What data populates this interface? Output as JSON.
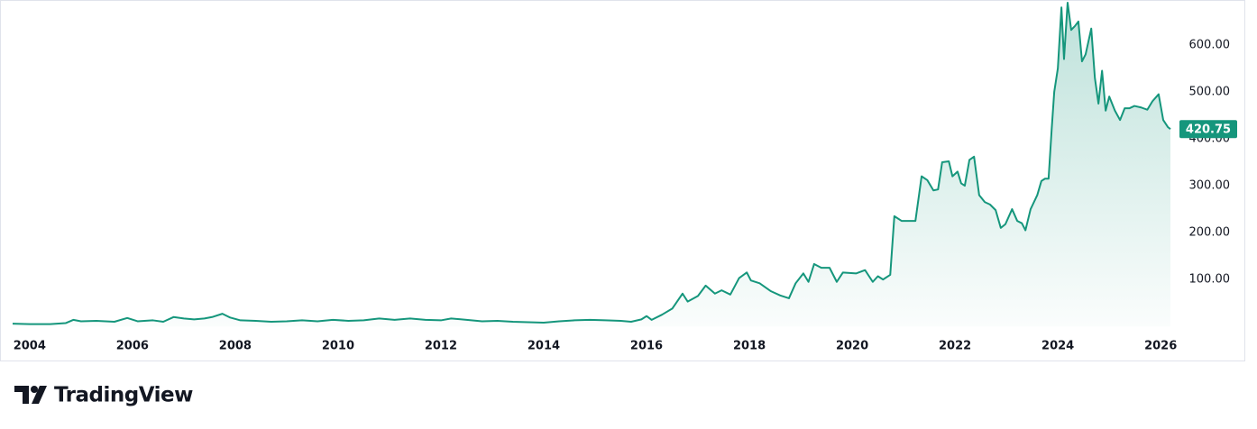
{
  "chart_data": {
    "type": "area",
    "color": "#15967c",
    "grid": false,
    "x": [
      2003.67,
      2004.0,
      2004.4,
      2004.7,
      2004.85,
      2005.0,
      2005.3,
      2005.65,
      2005.9,
      2006.1,
      2006.4,
      2006.6,
      2006.8,
      2007.0,
      2007.2,
      2007.4,
      2007.55,
      2007.75,
      2007.9,
      2008.1,
      2008.4,
      2008.7,
      2009.0,
      2009.3,
      2009.6,
      2009.9,
      2010.2,
      2010.5,
      2010.8,
      2011.1,
      2011.4,
      2011.7,
      2012.0,
      2012.2,
      2012.5,
      2012.8,
      2013.1,
      2013.4,
      2013.7,
      2014.0,
      2014.3,
      2014.6,
      2014.9,
      2015.2,
      2015.5,
      2015.7,
      2015.9,
      2016.0,
      2016.1,
      2016.3,
      2016.5,
      2016.7,
      2016.8,
      2017.0,
      2017.15,
      2017.33,
      2017.46,
      2017.63,
      2017.8,
      2017.95,
      2018.03,
      2018.2,
      2018.42,
      2018.6,
      2018.77,
      2018.9,
      2019.05,
      2019.15,
      2019.26,
      2019.4,
      2019.56,
      2019.7,
      2019.82,
      2020.08,
      2020.25,
      2020.4,
      2020.5,
      2020.6,
      2020.74,
      2020.82,
      2020.96,
      2021.23,
      2021.35,
      2021.46,
      2021.58,
      2021.67,
      2021.75,
      2021.88,
      2021.95,
      2022.05,
      2022.12,
      2022.19,
      2022.28,
      2022.37,
      2022.47,
      2022.58,
      2022.68,
      2022.79,
      2022.89,
      2022.98,
      2023.11,
      2023.21,
      2023.3,
      2023.37,
      2023.47,
      2023.6,
      2023.68,
      2023.75,
      2023.82,
      2023.88,
      2023.93,
      2024.0,
      2024.07,
      2024.12,
      2024.19,
      2024.26,
      2024.33,
      2024.4,
      2024.47,
      2024.54,
      2024.65,
      2024.72,
      2024.79,
      2024.86,
      2024.93,
      2025.0,
      2025.11,
      2025.21,
      2025.3,
      2025.39,
      2025.49,
      2025.61,
      2025.74,
      2025.84,
      2025.96,
      2026.05,
      2026.14,
      2026.19
    ],
    "values": [
      6,
      5,
      5,
      7,
      14,
      11,
      12,
      10,
      18,
      11,
      13,
      10,
      20,
      17,
      15,
      17,
      20,
      27,
      19,
      13,
      12,
      10,
      11,
      13,
      11,
      14,
      12,
      13,
      17,
      14,
      17,
      14,
      13,
      17,
      14,
      11,
      12,
      10,
      9,
      8,
      11,
      13,
      14,
      13,
      12,
      10,
      15,
      22,
      14,
      25,
      38,
      70,
      53,
      65,
      87,
      70,
      77,
      68,
      103,
      115,
      98,
      92,
      75,
      66,
      60,
      92,
      113,
      95,
      133,
      125,
      125,
      95,
      115,
      113,
      120,
      95,
      107,
      100,
      110,
      235,
      225,
      225,
      320,
      312,
      290,
      292,
      350,
      352,
      320,
      330,
      305,
      300,
      355,
      362,
      280,
      265,
      260,
      248,
      210,
      218,
      250,
      225,
      220,
      205,
      250,
      280,
      310,
      315,
      315,
      420,
      500,
      550,
      680,
      570,
      690,
      632,
      640,
      650,
      565,
      580,
      635,
      530,
      475,
      545,
      460,
      490,
      460,
      440,
      465,
      465,
      470,
      467,
      462,
      480,
      495,
      440,
      425,
      420.75
    ],
    "xlim": [
      2003.67,
      2026.19
    ],
    "xticks": [
      2004,
      2006,
      2008,
      2010,
      2012,
      2014,
      2016,
      2018,
      2020,
      2022,
      2024,
      2026
    ],
    "ylim": [
      -15,
      692
    ],
    "yticks": [
      {
        "value": 100,
        "label": "100.00"
      },
      {
        "value": 200,
        "label": "200.00"
      },
      {
        "value": 300,
        "label": "300.00"
      },
      {
        "value": 400,
        "label": "400.00"
      },
      {
        "value": 500,
        "label": "500.00"
      },
      {
        "value": 600,
        "label": "600.00"
      }
    ]
  },
  "footer": {
    "brand": "TradingView"
  }
}
